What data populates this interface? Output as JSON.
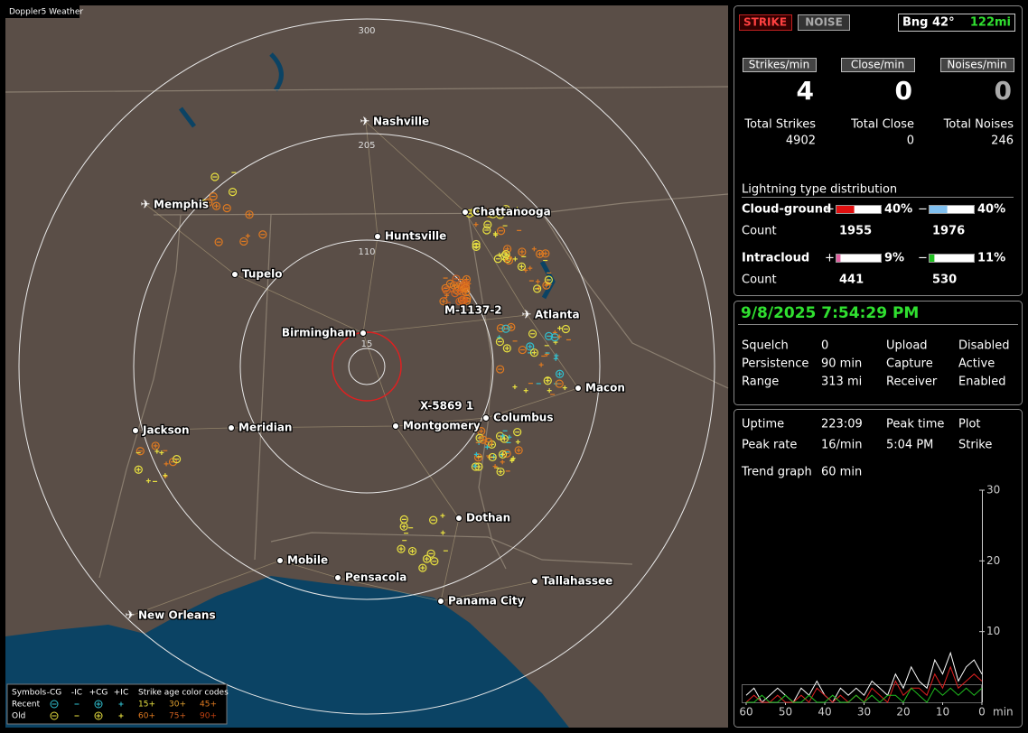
{
  "map": {
    "title": "Doppler5 Weather",
    "range_labels": [
      "300",
      "205",
      "110",
      "15"
    ],
    "cities": [
      {
        "name": "Nashville",
        "icon": "airport"
      },
      {
        "name": "Memphis",
        "icon": "airport"
      },
      {
        "name": "Chattanooga",
        "icon": "dot"
      },
      {
        "name": "Huntsville",
        "icon": "dot"
      },
      {
        "name": "Tupelo",
        "icon": "dot"
      },
      {
        "name": "Atlanta",
        "icon": "airport"
      },
      {
        "name": "Birmingham",
        "icon": "dot"
      },
      {
        "name": "Macon",
        "icon": "dot"
      },
      {
        "name": "Jackson",
        "icon": "dot"
      },
      {
        "name": "Meridian",
        "icon": "dot"
      },
      {
        "name": "Montgomery",
        "icon": "dot"
      },
      {
        "name": "Columbus",
        "icon": "dot"
      },
      {
        "name": "Dothan",
        "icon": "dot"
      },
      {
        "name": "Mobile",
        "icon": "dot"
      },
      {
        "name": "Pensacola",
        "icon": "dot"
      },
      {
        "name": "Tallahassee",
        "icon": "dot"
      },
      {
        "name": "Panama City",
        "icon": "dot"
      },
      {
        "name": "New Orleans",
        "icon": "airport"
      }
    ],
    "stations": [
      "M-1137-2",
      "X-5869 1"
    ],
    "legend": {
      "symbols_header": "Symbols",
      "symbol_types": [
        "-CG",
        "-IC",
        "+CG",
        "+IC"
      ],
      "age_header": "Strike age color codes",
      "rows": [
        {
          "label": "Recent",
          "ages": [
            "15+",
            "30+",
            "45+"
          ]
        },
        {
          "label": "Old",
          "ages": [
            "60+",
            "75+",
            "90+"
          ]
        }
      ]
    }
  },
  "status": {
    "strike_button": "STRIKE",
    "noise_button": "NOISE",
    "bearing": "Bng 42°",
    "distance": "122mi",
    "rates": [
      {
        "label": "Strikes/min",
        "value": 4
      },
      {
        "label": "Close/min",
        "value": 0
      },
      {
        "label": "Noises/min",
        "value": 0
      }
    ],
    "totals": [
      {
        "label": "Total Strikes",
        "value": 4902
      },
      {
        "label": "Total Close",
        "value": 0
      },
      {
        "label": "Total Noises",
        "value": 246
      }
    ]
  },
  "distribution": {
    "title": "Lightning type distribution",
    "count_label": "Count",
    "types": [
      {
        "name": "Cloud-ground",
        "plus": {
          "sign": "+",
          "percent": 40,
          "percent_label": "40%",
          "count": 1955,
          "color": "#e01010"
        },
        "minus": {
          "sign": "−",
          "percent": 40,
          "percent_label": "40%",
          "count": 1976,
          "color": "#80c0f0"
        }
      },
      {
        "name": "Intracloud",
        "plus": {
          "sign": "+",
          "percent": 9,
          "percent_label": "9%",
          "count": 441,
          "color": "#e060a0"
        },
        "minus": {
          "sign": "−",
          "percent": 11,
          "percent_label": "11%",
          "count": 530,
          "color": "#20c020"
        }
      }
    ]
  },
  "receiver": {
    "datetime": "9/8/2025 7:54:29 PM",
    "rows": [
      [
        "Squelch",
        "0",
        "Upload",
        "Disabled"
      ],
      [
        "Persistence",
        "90 min",
        "Capture",
        "Active"
      ],
      [
        "Range",
        "313 mi",
        "Receiver",
        "Enabled"
      ]
    ]
  },
  "stats": {
    "rows": [
      [
        "Uptime",
        "223:09",
        "Peak time",
        "Plot"
      ],
      [
        "Peak rate",
        "16/min",
        "5:04 PM",
        "Strike"
      ]
    ],
    "trend_label": "Trend graph",
    "trend_window": "60 min"
  },
  "trend_graph": {
    "type": "line",
    "x": [
      60,
      58,
      56,
      54,
      52,
      50,
      48,
      46,
      44,
      42,
      40,
      38,
      36,
      34,
      32,
      30,
      28,
      26,
      24,
      22,
      20,
      18,
      16,
      14,
      12,
      10,
      8,
      6,
      4,
      2,
      0
    ],
    "xlim": [
      60,
      0
    ],
    "xticks": [
      60,
      50,
      40,
      30,
      20,
      10,
      0
    ],
    "x_unit": "min",
    "ylim": [
      0,
      30
    ],
    "yticks": [
      10,
      20,
      30
    ],
    "series": [
      {
        "color": "#ffffff",
        "values": [
          1,
          2,
          0,
          1,
          2,
          1,
          0,
          2,
          1,
          3,
          1,
          0,
          2,
          1,
          2,
          1,
          3,
          2,
          1,
          4,
          2,
          5,
          3,
          2,
          6,
          4,
          7,
          3,
          5,
          6,
          4
        ]
      },
      {
        "color": "#e02020",
        "values": [
          0,
          1,
          0,
          0,
          1,
          0,
          0,
          1,
          0,
          2,
          1,
          0,
          1,
          0,
          1,
          0,
          2,
          1,
          0,
          3,
          1,
          2,
          2,
          1,
          4,
          2,
          5,
          2,
          3,
          4,
          3
        ]
      },
      {
        "color": "#20c020",
        "values": [
          0,
          0,
          1,
          0,
          0,
          1,
          0,
          0,
          1,
          0,
          0,
          1,
          0,
          0,
          1,
          0,
          1,
          0,
          1,
          1,
          0,
          2,
          1,
          0,
          2,
          1,
          2,
          1,
          2,
          1,
          2
        ]
      }
    ]
  }
}
